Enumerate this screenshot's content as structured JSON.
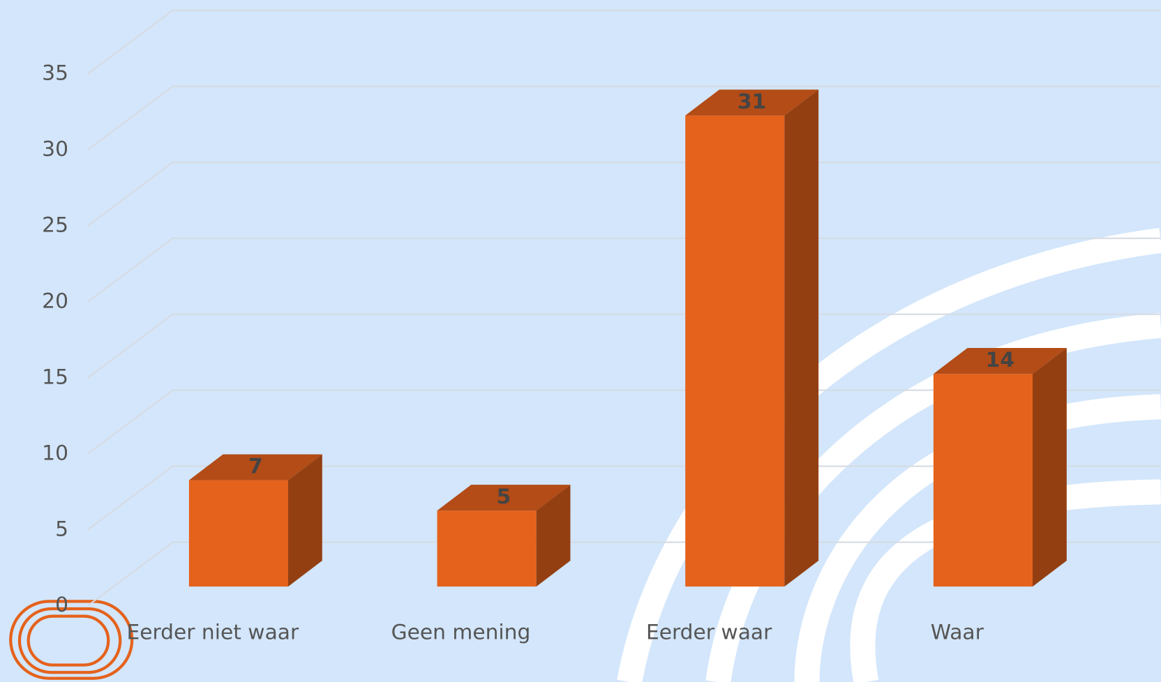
{
  "chart_data": {
    "type": "bar",
    "categories": [
      "Eerder niet waar",
      "Geen mening",
      "Eerder waar",
      "Waar"
    ],
    "values": [
      7,
      5,
      31,
      14
    ],
    "color": "#e5621c",
    "ylim": [
      0,
      35
    ],
    "yticks": [
      0,
      5,
      10,
      15,
      20,
      25,
      30,
      35
    ],
    "grid": true
  }
}
